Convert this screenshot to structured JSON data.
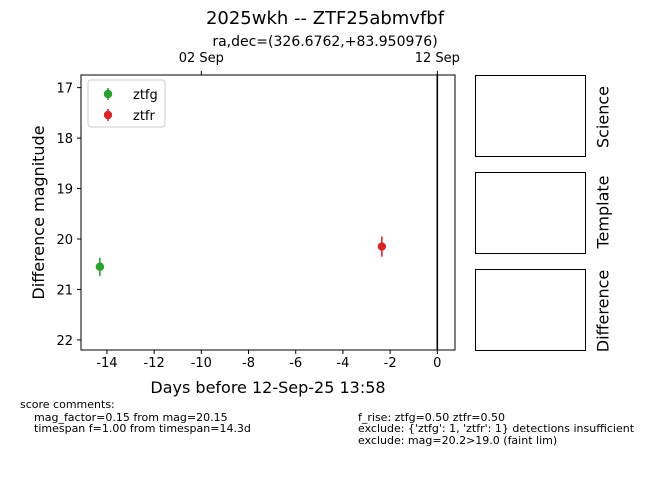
{
  "title": "2025wkh -- ZTF25abmvfbf",
  "subtitle": "ra,dec=(326.6762,+83.950976)",
  "chart_data": {
    "type": "scatter",
    "xlabel": "Days before 12-Sep-25 13:58",
    "ylabel": "Difference magnitude",
    "xlim": [
      -15.1,
      0.75
    ],
    "ylim": [
      22.2,
      16.75
    ],
    "y_inverted": true,
    "x_ticks": [
      -14,
      -12,
      -10,
      -8,
      -6,
      -4,
      -2,
      0
    ],
    "y_ticks": [
      17,
      18,
      19,
      20,
      21,
      22
    ],
    "top_axis_ticks": [
      {
        "x": -10.0,
        "label": "02 Sep"
      },
      {
        "x": 0.0,
        "label": "12 Sep"
      }
    ],
    "vline_x": 0,
    "legend_position": "upper left",
    "series": [
      {
        "name": "ztfg",
        "color": "#2ca02c",
        "points": [
          {
            "x": -14.3,
            "y": 20.55,
            "err": 0.18
          }
        ]
      },
      {
        "name": "ztfr",
        "color": "#d62728",
        "points": [
          {
            "x": -2.35,
            "y": 20.15,
            "err": 0.2
          }
        ]
      }
    ]
  },
  "side_panels": [
    {
      "label": "Science"
    },
    {
      "label": "Template"
    },
    {
      "label": "Difference"
    }
  ],
  "footer": {
    "left_heading": "score comments:",
    "left_lines": [
      "mag_factor=0.15 from mag=20.15",
      "timespan f=1.00 from timespan=14.3d"
    ],
    "right_lines": [
      "f_rise: ztfg=0.50 ztfr=0.50",
      "exclude: {'ztfg': 1, 'ztfr': 1} detections insufficient",
      "exclude: mag=20.2>19.0 (faint lim)"
    ]
  }
}
